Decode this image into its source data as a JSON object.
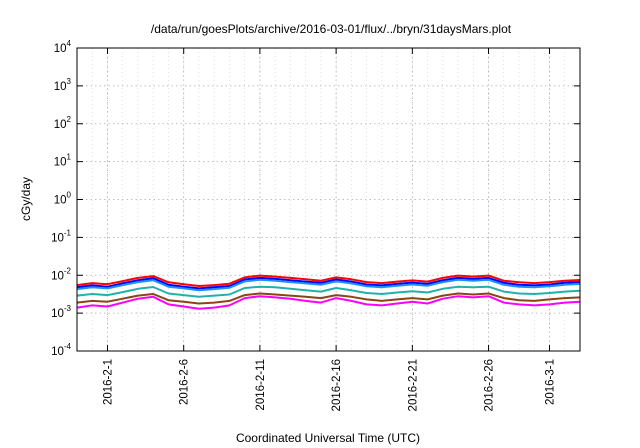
{
  "chart_data": {
    "type": "line",
    "title": "/data/run/goesPlots/archive/2016-03-01/flux/../bryn/31daysMars.plot",
    "xlabel": "Coordinated Universal Time (UTC)",
    "ylabel": "cGy/day",
    "x_range": [
      "2016-01-30",
      "2016-03-03"
    ],
    "x_ticks": [
      "2016-2-1",
      "2016-2-6",
      "2016-2-11",
      "2016-2-16",
      "2016-2-21",
      "2016-2-26",
      "2016-3-1"
    ],
    "y_scale": "log",
    "ylim": [
      0.0001,
      10000
    ],
    "y_ticks": [
      {
        "base": "10",
        "exp": "-4"
      },
      {
        "base": "10",
        "exp": "-3"
      },
      {
        "base": "10",
        "exp": "-2"
      },
      {
        "base": "10",
        "exp": "-1"
      },
      {
        "base": "10",
        "exp": "0"
      },
      {
        "base": "10",
        "exp": "1"
      },
      {
        "base": "10",
        "exp": "2"
      },
      {
        "base": "10",
        "exp": "3"
      },
      {
        "base": "10",
        "exp": "4"
      }
    ],
    "grid": true,
    "grid_style": "dotted",
    "series": [
      {
        "color": "#ff0000",
        "values": [
          0.0055,
          0.0062,
          0.0058,
          0.007,
          0.0085,
          0.0095,
          0.0065,
          0.0058,
          0.0052,
          0.0055,
          0.006,
          0.0088,
          0.0098,
          0.0092,
          0.0085,
          0.0078,
          0.0072,
          0.0088,
          0.0078,
          0.0066,
          0.0062,
          0.0068,
          0.0073,
          0.0068,
          0.0085,
          0.0098,
          0.0092,
          0.0098,
          0.0072,
          0.0065,
          0.0062,
          0.0066,
          0.0072,
          0.0075
        ]
      },
      {
        "color": "#0000ff",
        "values": [
          0.0048,
          0.0054,
          0.005,
          0.0061,
          0.0074,
          0.0083,
          0.0056,
          0.005,
          0.0045,
          0.0048,
          0.0052,
          0.0077,
          0.0085,
          0.008,
          0.0074,
          0.0068,
          0.0063,
          0.0077,
          0.0068,
          0.0057,
          0.0054,
          0.0059,
          0.0064,
          0.0059,
          0.0074,
          0.0085,
          0.008,
          0.0085,
          0.0063,
          0.0056,
          0.0054,
          0.0057,
          0.0063,
          0.0066
        ]
      },
      {
        "color": "#1e90ff",
        "values": [
          0.0043,
          0.0048,
          0.0045,
          0.0055,
          0.0066,
          0.0074,
          0.005,
          0.0045,
          0.004,
          0.0043,
          0.0047,
          0.0069,
          0.0076,
          0.0072,
          0.0066,
          0.0061,
          0.0056,
          0.0069,
          0.0061,
          0.0051,
          0.0048,
          0.0053,
          0.0057,
          0.0053,
          0.0066,
          0.0076,
          0.0072,
          0.0076,
          0.0056,
          0.005,
          0.0048,
          0.0051,
          0.0056,
          0.0059
        ]
      },
      {
        "color": "#20b2aa",
        "values": [
          0.0029,
          0.0032,
          0.003,
          0.0036,
          0.0044,
          0.0049,
          0.0033,
          0.003,
          0.0027,
          0.0029,
          0.0031,
          0.0046,
          0.005,
          0.0048,
          0.0044,
          0.004,
          0.0037,
          0.0046,
          0.004,
          0.0034,
          0.0032,
          0.0035,
          0.0038,
          0.0035,
          0.0044,
          0.005,
          0.0048,
          0.005,
          0.0037,
          0.0033,
          0.0032,
          0.0034,
          0.0037,
          0.0039
        ]
      },
      {
        "color": "#8b4513",
        "values": [
          0.0019,
          0.0021,
          0.002,
          0.0024,
          0.0029,
          0.0032,
          0.0022,
          0.002,
          0.0018,
          0.0019,
          0.0021,
          0.003,
          0.0033,
          0.0031,
          0.0029,
          0.0027,
          0.0025,
          0.003,
          0.0027,
          0.0023,
          0.0021,
          0.0023,
          0.0025,
          0.0023,
          0.0029,
          0.0033,
          0.0031,
          0.0033,
          0.0025,
          0.0022,
          0.0021,
          0.0023,
          0.0025,
          0.0026
        ]
      },
      {
        "color": "#ff00ff",
        "values": [
          0.0014,
          0.0016,
          0.0015,
          0.0019,
          0.0024,
          0.0027,
          0.0017,
          0.0015,
          0.0013,
          0.0014,
          0.0016,
          0.0025,
          0.0028,
          0.0026,
          0.0024,
          0.0021,
          0.0019,
          0.0025,
          0.0021,
          0.0017,
          0.0016,
          0.0018,
          0.002,
          0.0018,
          0.0024,
          0.0028,
          0.0026,
          0.0028,
          0.0019,
          0.0017,
          0.0016,
          0.0017,
          0.0019,
          0.002
        ]
      }
    ]
  }
}
